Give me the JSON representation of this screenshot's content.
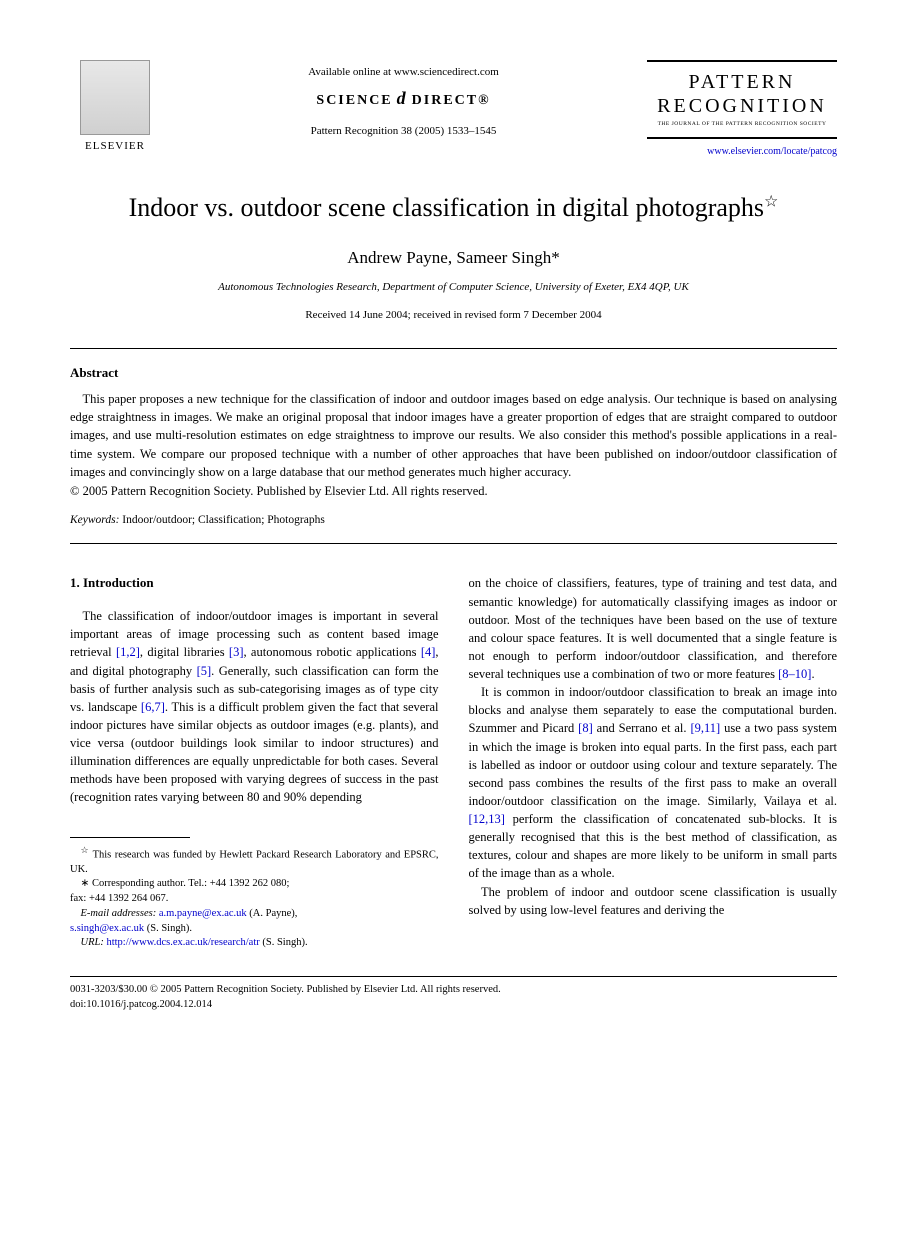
{
  "header": {
    "publisher_name": "ELSEVIER",
    "available_online": "Available online at www.sciencedirect.com",
    "science_direct_left": "SCIENCE",
    "science_direct_right": "DIRECT®",
    "journal_ref": "Pattern Recognition 38 (2005) 1533–1545",
    "journal_logo_line1": "PATTERN",
    "journal_logo_line2": "RECOGNITION",
    "journal_logo_sub": "THE JOURNAL OF THE PATTERN RECOGNITION SOCIETY",
    "journal_url": "www.elsevier.com/locate/patcog"
  },
  "title": "Indoor vs. outdoor scene classification in digital photographs",
  "title_star": "☆",
  "authors": "Andrew Payne, Sameer Singh",
  "corresponding_mark": "*",
  "affiliation": "Autonomous Technologies Research, Department of Computer Science, University of Exeter, EX4 4QP, UK",
  "dates": "Received 14 June 2004; received in revised form 7 December 2004",
  "abstract": {
    "heading": "Abstract",
    "text": "This paper proposes a new technique for the classification of indoor and outdoor images based on edge analysis. Our technique is based on analysing edge straightness in images. We make an original proposal that indoor images have a greater proportion of edges that are straight compared to outdoor images, and use multi-resolution estimates on edge straightness to improve our results. We also consider this method's possible applications in a real-time system. We compare our proposed technique with a number of other approaches that have been published on indoor/outdoor classification of images and convincingly show on a large database that our method generates much higher accuracy.",
    "copyright": "© 2005 Pattern Recognition Society. Published by Elsevier Ltd. All rights reserved."
  },
  "keywords": {
    "label": "Keywords:",
    "text": " Indoor/outdoor; Classification; Photographs"
  },
  "section1": {
    "heading": "1. Introduction",
    "col1_p1_a": "The classification of indoor/outdoor images is important in several important areas of image processing such as content based image retrieval ",
    "ref_1_2": "[1,2]",
    "col1_p1_b": ", digital libraries ",
    "ref_3": "[3]",
    "col1_p1_c": ", autonomous robotic applications ",
    "ref_4": "[4]",
    "col1_p1_d": ", and digital photography ",
    "ref_5": "[5]",
    "col1_p1_e": ". Generally, such classification can form the basis of further analysis such as sub-categorising images as of type city vs. landscape ",
    "ref_6_7": "[6,7]",
    "col1_p1_f": ". This is a difficult problem given the fact that several indoor pictures have similar objects as outdoor images (e.g. plants), and vice versa (outdoor buildings look similar to indoor structures) and illumination differences are equally unpredictable for both cases. Several methods have been proposed with varying degrees of success in the past (recognition rates varying between 80 and 90% depending",
    "col2_p1_a": "on the choice of classifiers, features, type of training and test data, and semantic knowledge) for automatically classifying images as indoor or outdoor. Most of the techniques have been based on the use of texture and colour space features. It is well documented that a single feature is not enough to perform indoor/outdoor classification, and therefore several techniques use a combination of two or more features ",
    "ref_8_10": "[8–10]",
    "col2_p1_b": ".",
    "col2_p2_a": "It is common in indoor/outdoor classification to break an image into blocks and analyse them separately to ease the computational burden. Szummer and Picard ",
    "ref_8": "[8]",
    "col2_p2_b": " and Serrano et al. ",
    "ref_9_11": "[9,11]",
    "col2_p2_c": " use a two pass system in which the image is broken into equal parts. In the first pass, each part is labelled as indoor or outdoor using colour and texture separately. The second pass combines the results of the first pass to make an overall indoor/outdoor classification on the image. Similarly, Vailaya et al. ",
    "ref_12_13": "[12,13]",
    "col2_p2_d": " perform the classification of concatenated sub-blocks. It is generally recognised that this is the best method of classification, as textures, colour and shapes are more likely to be uniform in small parts of the image than as a whole.",
    "col2_p3": "The problem of indoor and outdoor scene classification is usually solved by using low-level features and deriving the"
  },
  "footnotes": {
    "funding_star": "☆",
    "funding": " This research was funded by Hewlett Packard Research Laboratory and EPSRC, UK.",
    "corr_mark": "∗",
    "corr": " Corresponding author. Tel.: +44 1392 262 080;",
    "fax": "fax: +44 1392 264 067.",
    "email_label": "E-mail addresses:",
    "email1": "a.m.payne@ex.ac.uk",
    "email1_suffix": " (A. Payne),",
    "email2": "s.singh@ex.ac.uk",
    "email2_suffix": " (S. Singh).",
    "url_label": "URL:",
    "url": "http://www.dcs.ex.ac.uk/research/atr",
    "url_suffix": " (S. Singh)."
  },
  "footer": {
    "line1": "0031-3203/$30.00 © 2005 Pattern Recognition Society. Published by Elsevier Ltd. All rights reserved.",
    "line2": "doi:10.1016/j.patcog.2004.12.014"
  }
}
